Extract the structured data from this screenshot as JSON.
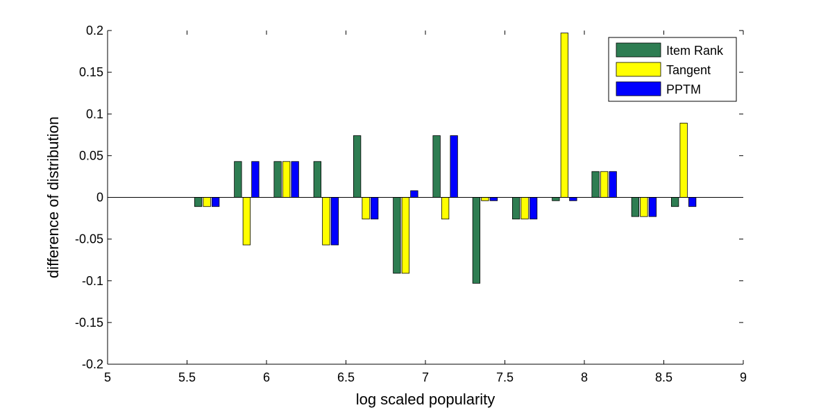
{
  "chart_data": {
    "type": "bar",
    "title": "",
    "xlabel": "log scaled popularity",
    "ylabel": "difference of distribution",
    "xlim": [
      5,
      9
    ],
    "ylim": [
      -0.2,
      0.2
    ],
    "xticks": [
      5,
      5.5,
      6,
      6.5,
      7,
      7.5,
      8,
      8.5,
      9
    ],
    "yticks": [
      -0.2,
      -0.15,
      -0.1,
      -0.05,
      0,
      0.05,
      0.1,
      0.15,
      0.2
    ],
    "xtick_labels": [
      "5",
      "5.5",
      "6",
      "6.5",
      "7",
      "7.5",
      "8",
      "8.5",
      "9"
    ],
    "ytick_labels": [
      "-0.2",
      "-0.15",
      "-0.1",
      "-0.05",
      "0",
      "0.05",
      "0.1",
      "0.15",
      "0.2"
    ],
    "grid": false,
    "legend_position": "top-right",
    "x": [
      5.625,
      5.875,
      6.125,
      6.375,
      6.625,
      6.875,
      7.125,
      7.375,
      7.625,
      7.875,
      8.125,
      8.375,
      8.625
    ],
    "series": [
      {
        "name": "Item Rank",
        "color": "#2e7d52",
        "values": [
          -0.011,
          0.043,
          0.043,
          0.043,
          0.074,
          -0.091,
          0.074,
          -0.103,
          -0.026,
          -0.004,
          0.031,
          -0.023,
          -0.011
        ]
      },
      {
        "name": "Tangent",
        "color": "#ffff00",
        "values": [
          -0.011,
          -0.057,
          0.043,
          -0.057,
          -0.026,
          -0.091,
          -0.026,
          -0.004,
          -0.026,
          0.197,
          0.031,
          -0.023,
          0.089
        ]
      },
      {
        "name": "PPTM",
        "color": "#0000ff",
        "values": [
          -0.011,
          0.043,
          0.043,
          -0.057,
          -0.026,
          0.008,
          0.074,
          -0.004,
          -0.026,
          -0.004,
          0.031,
          -0.023,
          -0.011
        ]
      }
    ]
  }
}
